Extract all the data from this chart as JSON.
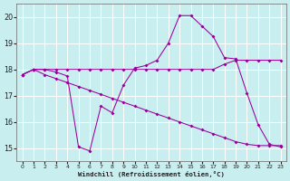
{
  "background_color": "#c8eef0",
  "grid_color": "#b8dfe2",
  "line_color": "#990099",
  "xlabel": "Windchill (Refroidissement éolien,°C)",
  "xlim": [
    -0.5,
    23.5
  ],
  "ylim": [
    14.5,
    20.5
  ],
  "yticks": [
    15,
    16,
    17,
    18,
    19,
    20
  ],
  "xticks": [
    0,
    1,
    2,
    3,
    4,
    5,
    6,
    7,
    8,
    9,
    10,
    11,
    12,
    13,
    14,
    15,
    16,
    17,
    18,
    19,
    20,
    21,
    22,
    23
  ],
  "curve1_x": [
    0,
    1,
    2,
    3,
    4,
    5,
    6,
    7,
    8,
    9,
    10,
    11,
    12,
    13,
    14,
    15,
    16,
    17,
    18,
    19,
    20,
    21,
    22,
    23
  ],
  "curve1_y": [
    17.8,
    18.0,
    18.0,
    17.9,
    17.75,
    15.05,
    14.9,
    16.6,
    16.35,
    17.4,
    18.05,
    18.15,
    18.35,
    19.0,
    20.05,
    20.05,
    19.65,
    19.25,
    18.45,
    18.4,
    17.1,
    15.9,
    15.15,
    15.05
  ],
  "curve2_x": [
    0,
    1,
    2,
    3,
    4,
    5,
    6,
    7,
    8,
    9,
    10,
    11,
    12,
    13,
    14,
    15,
    16,
    17,
    18,
    19,
    20,
    21,
    22,
    23
  ],
  "curve2_y": [
    17.8,
    18.0,
    18.0,
    18.0,
    18.0,
    18.0,
    18.0,
    18.0,
    18.0,
    18.0,
    18.0,
    18.0,
    18.0,
    18.0,
    18.0,
    18.0,
    18.0,
    18.0,
    18.2,
    18.35,
    18.35,
    18.35,
    18.35,
    18.35
  ],
  "curve3_x": [
    0,
    1,
    2,
    3,
    4,
    5,
    6,
    7,
    8,
    9,
    10,
    11,
    12,
    13,
    14,
    15,
    16,
    17,
    18,
    19,
    20,
    21,
    22,
    23
  ],
  "curve3_y": [
    17.8,
    18.0,
    17.8,
    17.65,
    17.5,
    17.35,
    17.2,
    17.05,
    16.9,
    16.75,
    16.6,
    16.45,
    16.3,
    16.15,
    16.0,
    15.85,
    15.7,
    15.55,
    15.4,
    15.25,
    15.15,
    15.1,
    15.1,
    15.1
  ]
}
